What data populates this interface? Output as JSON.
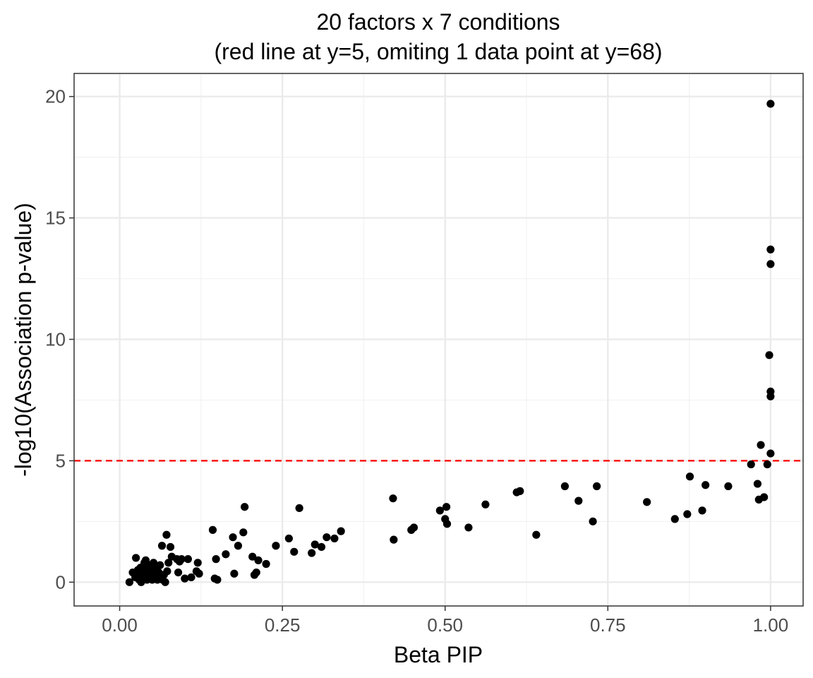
{
  "chart_data": {
    "type": "scatter",
    "title_line1": "20 factors x 7 conditions",
    "title_line2": "(red line at y=5, omiting 1 data point at y=68)",
    "xlabel": "Beta PIP",
    "ylabel": "-log10(Association p-value)",
    "xlim": [
      -0.07,
      1.05
    ],
    "ylim": [
      -0.98,
      20.95
    ],
    "x_ticks": [
      {
        "value": 0,
        "label": "0.00"
      },
      {
        "value": 0.25,
        "label": "0.25"
      },
      {
        "value": 0.5,
        "label": "0.50"
      },
      {
        "value": 0.75,
        "label": "0.75"
      },
      {
        "value": 1,
        "label": "1.00"
      }
    ],
    "y_ticks": [
      {
        "value": 0,
        "label": "0"
      },
      {
        "value": 5,
        "label": "5"
      },
      {
        "value": 10,
        "label": "10"
      },
      {
        "value": 15,
        "label": "15"
      },
      {
        "value": 20,
        "label": "20"
      }
    ],
    "grid": true,
    "reference_line": {
      "y": 5,
      "color": "#ff0000",
      "style": "dashed"
    },
    "point_color": "#000000",
    "series": [
      {
        "points": [
          {
            "x": 0.015,
            "y": 0.0
          },
          {
            "x": 0.02,
            "y": 0.4
          },
          {
            "x": 0.024,
            "y": 0.2
          },
          {
            "x": 0.025,
            "y": 1.0
          },
          {
            "x": 0.028,
            "y": 0.5
          },
          {
            "x": 0.03,
            "y": 0.1
          },
          {
            "x": 0.03,
            "y": 0.3
          },
          {
            "x": 0.032,
            "y": 0.6
          },
          {
            "x": 0.033,
            "y": 0.0
          },
          {
            "x": 0.035,
            "y": 0.4
          },
          {
            "x": 0.037,
            "y": 0.2
          },
          {
            "x": 0.038,
            "y": 0.8
          },
          {
            "x": 0.04,
            "y": 0.5
          },
          {
            "x": 0.04,
            "y": 0.9
          },
          {
            "x": 0.042,
            "y": 0.1
          },
          {
            "x": 0.043,
            "y": 0.3
          },
          {
            "x": 0.045,
            "y": 0.6
          },
          {
            "x": 0.046,
            "y": 0.2
          },
          {
            "x": 0.048,
            "y": 0.7
          },
          {
            "x": 0.05,
            "y": 0.4
          },
          {
            "x": 0.05,
            "y": 0.1
          },
          {
            "x": 0.052,
            "y": 0.8
          },
          {
            "x": 0.055,
            "y": 0.3
          },
          {
            "x": 0.056,
            "y": 0.6
          },
          {
            "x": 0.058,
            "y": 0.1
          },
          {
            "x": 0.06,
            "y": 0.4
          },
          {
            "x": 0.062,
            "y": 0.7
          },
          {
            "x": 0.063,
            "y": 0.2
          },
          {
            "x": 0.065,
            "y": 1.5
          },
          {
            "x": 0.066,
            "y": 0.1
          },
          {
            "x": 0.068,
            "y": 0.3
          },
          {
            "x": 0.07,
            "y": 0.0
          },
          {
            "x": 0.072,
            "y": 1.95
          },
          {
            "x": 0.073,
            "y": 0.45
          },
          {
            "x": 0.075,
            "y": 0.8
          },
          {
            "x": 0.078,
            "y": 1.45
          },
          {
            "x": 0.08,
            "y": 1.05
          },
          {
            "x": 0.088,
            "y": 0.95
          },
          {
            "x": 0.09,
            "y": 0.4
          },
          {
            "x": 0.092,
            "y": 0.85
          },
          {
            "x": 0.095,
            "y": 0.95
          },
          {
            "x": 0.1,
            "y": 0.15
          },
          {
            "x": 0.105,
            "y": 0.95
          },
          {
            "x": 0.11,
            "y": 0.2
          },
          {
            "x": 0.118,
            "y": 0.45
          },
          {
            "x": 0.12,
            "y": 0.8
          },
          {
            "x": 0.122,
            "y": 0.35
          },
          {
            "x": 0.143,
            "y": 2.15
          },
          {
            "x": 0.146,
            "y": 0.15
          },
          {
            "x": 0.148,
            "y": 0.95
          },
          {
            "x": 0.15,
            "y": 0.1
          },
          {
            "x": 0.163,
            "y": 1.15
          },
          {
            "x": 0.174,
            "y": 1.85
          },
          {
            "x": 0.176,
            "y": 0.35
          },
          {
            "x": 0.182,
            "y": 1.5
          },
          {
            "x": 0.19,
            "y": 2.05
          },
          {
            "x": 0.192,
            "y": 3.1
          },
          {
            "x": 0.204,
            "y": 1.05
          },
          {
            "x": 0.207,
            "y": 0.3
          },
          {
            "x": 0.21,
            "y": 0.4
          },
          {
            "x": 0.213,
            "y": 0.9
          },
          {
            "x": 0.225,
            "y": 0.75
          },
          {
            "x": 0.24,
            "y": 1.5
          },
          {
            "x": 0.26,
            "y": 1.8
          },
          {
            "x": 0.268,
            "y": 1.25
          },
          {
            "x": 0.276,
            "y": 3.05
          },
          {
            "x": 0.295,
            "y": 1.2
          },
          {
            "x": 0.3,
            "y": 1.55
          },
          {
            "x": 0.31,
            "y": 1.45
          },
          {
            "x": 0.318,
            "y": 1.85
          },
          {
            "x": 0.33,
            "y": 1.8
          },
          {
            "x": 0.34,
            "y": 2.1
          },
          {
            "x": 0.42,
            "y": 3.45
          },
          {
            "x": 0.421,
            "y": 1.75
          },
          {
            "x": 0.448,
            "y": 2.15
          },
          {
            "x": 0.452,
            "y": 2.25
          },
          {
            "x": 0.492,
            "y": 2.95
          },
          {
            "x": 0.5,
            "y": 2.6
          },
          {
            "x": 0.502,
            "y": 3.1
          },
          {
            "x": 0.503,
            "y": 2.4
          },
          {
            "x": 0.536,
            "y": 2.25
          },
          {
            "x": 0.562,
            "y": 3.2
          },
          {
            "x": 0.61,
            "y": 3.7
          },
          {
            "x": 0.615,
            "y": 3.75
          },
          {
            "x": 0.64,
            "y": 1.95
          },
          {
            "x": 0.684,
            "y": 3.95
          },
          {
            "x": 0.705,
            "y": 3.35
          },
          {
            "x": 0.727,
            "y": 2.5
          },
          {
            "x": 0.733,
            "y": 3.95
          },
          {
            "x": 0.81,
            "y": 3.3
          },
          {
            "x": 0.853,
            "y": 2.6
          },
          {
            "x": 0.872,
            "y": 2.8
          },
          {
            "x": 0.876,
            "y": 4.35
          },
          {
            "x": 0.895,
            "y": 2.95
          },
          {
            "x": 0.9,
            "y": 4.0
          },
          {
            "x": 0.935,
            "y": 3.95
          },
          {
            "x": 0.97,
            "y": 4.85
          },
          {
            "x": 0.98,
            "y": 4.05
          },
          {
            "x": 0.982,
            "y": 3.4
          },
          {
            "x": 0.985,
            "y": 5.65
          },
          {
            "x": 0.99,
            "y": 3.5
          },
          {
            "x": 0.995,
            "y": 4.85
          },
          {
            "x": 0.998,
            "y": 9.35
          },
          {
            "x": 1.0,
            "y": 5.3
          },
          {
            "x": 1.0,
            "y": 7.65
          },
          {
            "x": 1.0,
            "y": 7.85
          },
          {
            "x": 1.0,
            "y": 13.1
          },
          {
            "x": 1.0,
            "y": 13.7
          },
          {
            "x": 1.0,
            "y": 19.7
          }
        ]
      }
    ]
  }
}
